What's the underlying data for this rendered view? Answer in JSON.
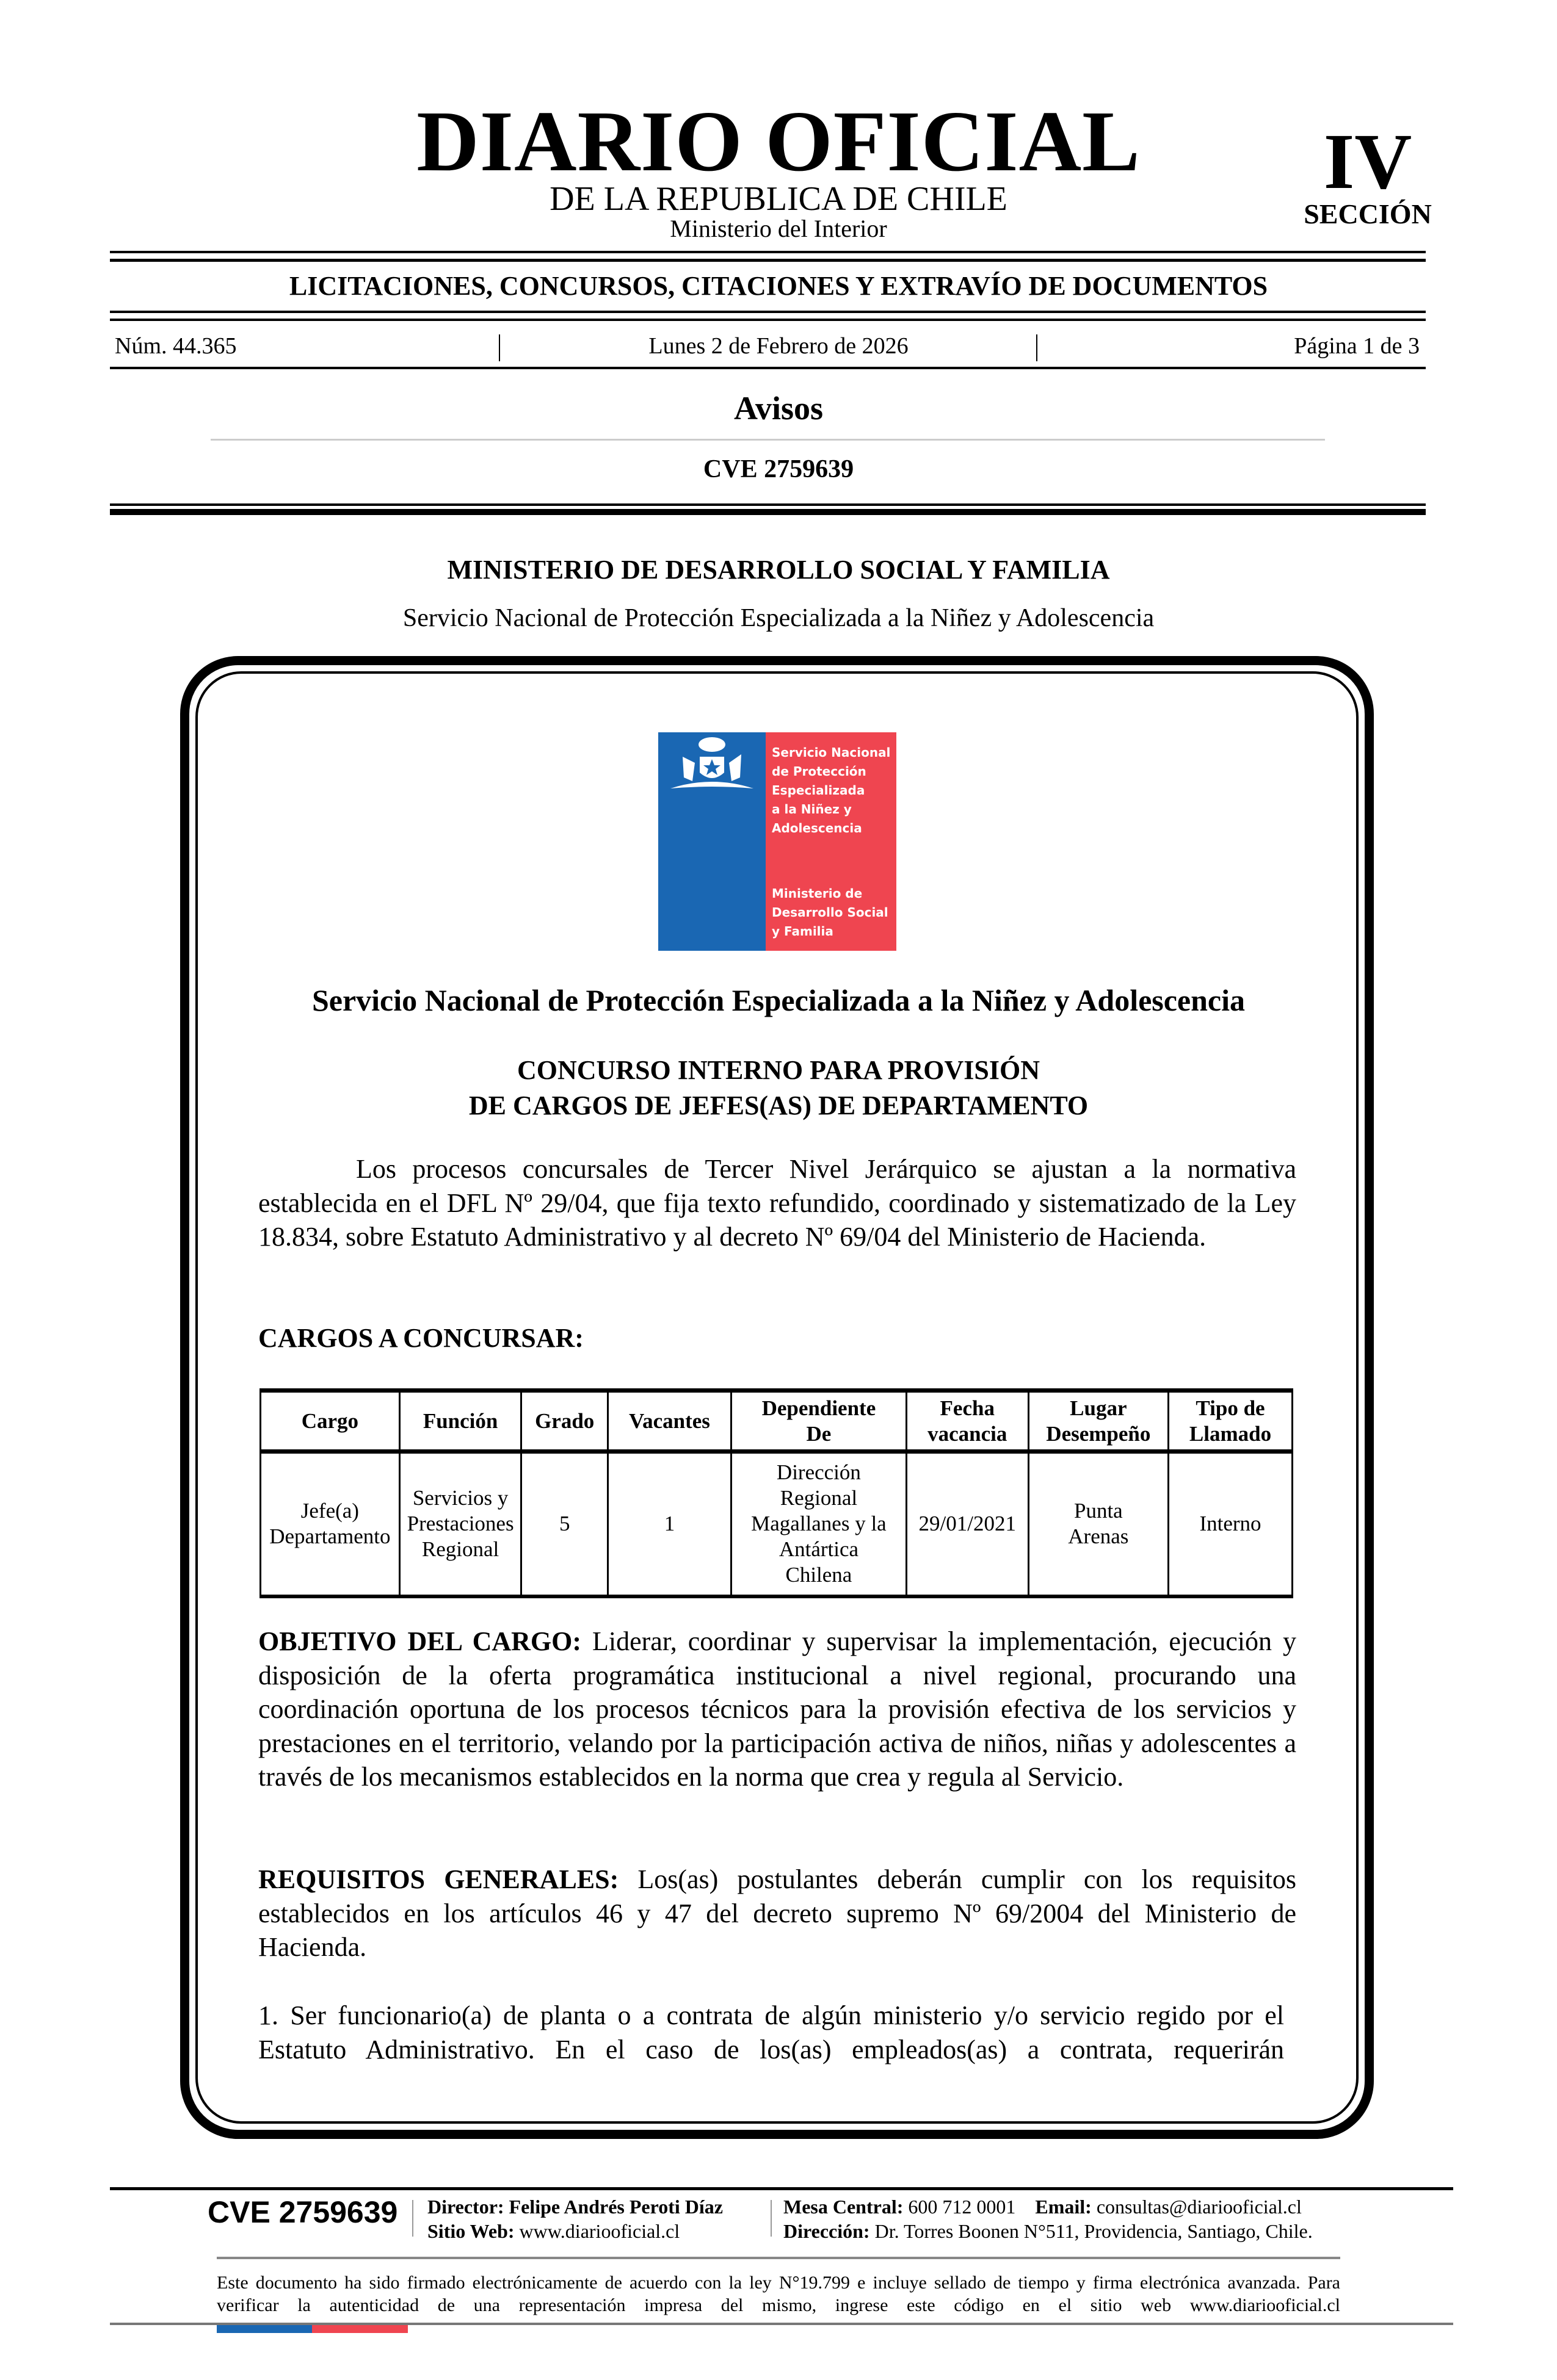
{
  "masthead": {
    "title": "DIARIO OFICIAL",
    "subtitle": "DE LA REPUBLICA DE CHILE",
    "ministry": "Ministerio del Interior",
    "section_number": "IV",
    "section_label": "SECCIÓN"
  },
  "section_title": "LICITACIONES, CONCURSOS, CITACIONES Y EXTRAVÍO DE DOCUMENTOS",
  "meta": {
    "number": "Núm. 44.365",
    "date": "Lunes 2 de Febrero de 2026",
    "page": "Página 1 de 3"
  },
  "category": "Avisos",
  "cve": "CVE 2759639",
  "issuer": {
    "ministry": "MINISTERIO DE DESARROLLO SOCIAL Y FAMILIA",
    "service": "Servicio Nacional de Protección Especializada a la Niñez y Adolescencia"
  },
  "logo": {
    "line1": "Servicio Nacional",
    "line2": "de Protección",
    "line3": "Especializada",
    "line4": "a la Niñez y",
    "line5": "Adolescencia",
    "line6": "Ministerio de",
    "line7": "Desarrollo Social",
    "line8": "y Familia",
    "colors": {
      "blue": "#1a67b3",
      "red": "#ef4550"
    }
  },
  "notice": {
    "heading": "Servicio Nacional de Protección Especializada a la Niñez y Adolescencia",
    "title_line1": "CONCURSO INTERNO PARA PROVISIÓN",
    "title_line2": "DE CARGOS DE JEFES(AS) DE DEPARTAMENTO",
    "intro": "Los procesos concursales de Tercer Nivel Jerárquico se ajustan a la normativa establecida en el DFL Nº 29/04, que fija texto refundido, coordinado y sistematizado de la Ley 18.834, sobre Estatuto Administrativo y al decreto Nº 69/04 del Ministerio de Hacienda.",
    "cargos_heading": "CARGOS A CONCURSAR:",
    "table": {
      "headers": [
        "Cargo",
        "Función",
        "Grado",
        "Vacantes",
        "Dependiente De",
        "Fecha vacancia",
        "Lugar Desempeño",
        "Tipo de Llamado"
      ],
      "rows": [
        [
          "Jefe(a) Departamento",
          "Servicios y Prestaciones Regional",
          "5",
          "1",
          "Dirección Regional Magallanes y la Antártica Chilena",
          "29/01/2021",
          "Punta Arenas",
          "Interno"
        ]
      ]
    },
    "objetivo_label": "OBJETIVO DEL CARGO:",
    "objetivo_text": "Liderar, coordinar y supervisar la implementación, ejecución y disposición de la oferta programática institucional a nivel regional, procurando una coordinación oportuna de los procesos técnicos para la provisión efectiva de los servicios y prestaciones en el territorio, velando por la participación activa de niños, niñas y adolescentes a través de los mecanismos establecidos en la norma que crea y regula al Servicio.",
    "requisitos_label": "REQUISITOS GENERALES:",
    "requisitos_text": "Los(as) postulantes deberán cumplir con los requisitos establecidos en los artículos 46 y 47 del decreto supremo Nº 69/2004 del Ministerio de Hacienda.",
    "item1": "1. Ser funcionario(a) de planta o a contrata de algún ministerio y/o servicio regido por  el Estatuto Administrativo. En el caso de los(as) empleados(as) a contrata, requerirán"
  },
  "footer": {
    "cve": "CVE 2759639",
    "director_label": "Director:",
    "director": "Felipe Andrés Peroti Díaz",
    "web_label": "Sitio Web:",
    "web": "www.diariooficial.cl",
    "phone_label": "Mesa Central:",
    "phone": "600 712 0001",
    "email_label": "Email:",
    "email": "consultas@diariooficial.cl",
    "address_label": "Dirección:",
    "address": "Dr. Torres Boonen N°511, Providencia, Santiago, Chile.",
    "disclaimer": "Este documento ha sido firmado electrónicamente de acuerdo con la ley N°19.799 e incluye sellado de tiempo y firma electrónica avanzada. Para verificar la autenticidad de una representación impresa del mismo, ingrese este código en el sitio web www.diariooficial.cl"
  }
}
